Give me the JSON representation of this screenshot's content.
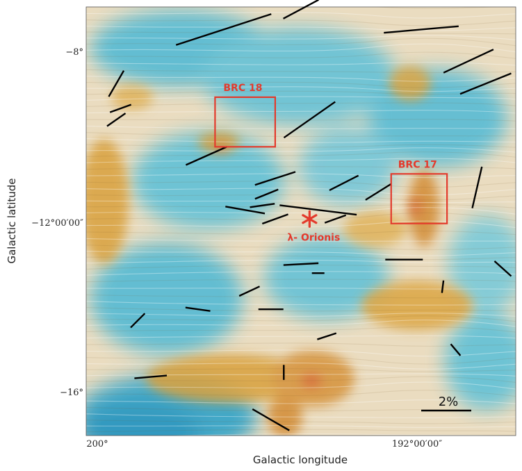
{
  "chart_data": {
    "type": "scatter",
    "xlabel": "Galactic longitude",
    "ylabel": "Galactic latitude",
    "x_range": [
      200.3,
      190.3
    ],
    "y_range": [
      -16.8,
      -7.3
    ],
    "x_ticks": [
      {
        "value": 200,
        "label": "200°"
      },
      {
        "value": 192,
        "label": "192°00′00″"
      }
    ],
    "y_ticks": [
      {
        "value": -8,
        "label": "−8°"
      },
      {
        "value": -12,
        "label": "−12°00′00″"
      },
      {
        "value": -16,
        "label": "−16°"
      }
    ],
    "background": "polarization texture map (drapery) over dust intensity",
    "colors": {
      "diffuse": "#5bbcd3",
      "dense": "#d9a13d",
      "peak": "#d8643a",
      "vectors": "#000000",
      "annotation": "#e33a2c"
    },
    "regions": [
      {
        "name": "BRC 18",
        "l_min": 195.9,
        "l_max": 197.3,
        "b_min": -10.4,
        "b_max": -9.3
      },
      {
        "name": "BRC 17",
        "l_min": 191.9,
        "l_max": 193.2,
        "b_min": -12.1,
        "b_max": -11.0
      }
    ],
    "markers": [
      {
        "name": "λ- Orionis",
        "l": 195.1,
        "b": -12.0,
        "symbol": "*"
      }
    ],
    "scale_bar": {
      "label": "2%",
      "fraction": 0.02
    },
    "vectors": [
      {
        "l": 197.1,
        "b": -7.8,
        "angle": 18,
        "p": 0.04
      },
      {
        "l": 195.3,
        "b": -7.35,
        "angle": 28,
        "p": 0.016
      },
      {
        "l": 192.5,
        "b": -7.8,
        "angle": 5,
        "p": 0.03
      },
      {
        "l": 191.4,
        "b": -8.5,
        "angle": 25,
        "p": 0.022
      },
      {
        "l": 191.0,
        "b": -9.0,
        "angle": 22,
        "p": 0.022
      },
      {
        "l": 199.6,
        "b": -9.0,
        "angle": 60,
        "p": 0.012
      },
      {
        "l": 199.5,
        "b": -9.55,
        "angle": 20,
        "p": 0.009
      },
      {
        "l": 199.6,
        "b": -9.8,
        "angle": 35,
        "p": 0.009
      },
      {
        "l": 195.1,
        "b": -9.8,
        "angle": 35,
        "p": 0.025
      },
      {
        "l": 197.5,
        "b": -10.6,
        "angle": 24,
        "p": 0.018
      },
      {
        "l": 195.9,
        "b": -11.1,
        "angle": 18,
        "p": 0.017
      },
      {
        "l": 196.1,
        "b": -11.45,
        "angle": 22,
        "p": 0.01
      },
      {
        "l": 196.2,
        "b": -11.7,
        "angle": 8,
        "p": 0.01
      },
      {
        "l": 195.9,
        "b": -12.0,
        "angle": 20,
        "p": 0.011
      },
      {
        "l": 196.6,
        "b": -11.8,
        "angle": -10,
        "p": 0.016
      },
      {
        "l": 194.9,
        "b": -11.8,
        "angle": -7,
        "p": 0.031
      },
      {
        "l": 194.3,
        "b": -11.2,
        "angle": 27,
        "p": 0.013
      },
      {
        "l": 193.5,
        "b": -11.4,
        "angle": 32,
        "p": 0.012
      },
      {
        "l": 194.5,
        "b": -12.0,
        "angle": 20,
        "p": 0.009
      },
      {
        "l": 191.2,
        "b": -11.3,
        "angle": 77,
        "p": 0.017
      },
      {
        "l": 192.9,
        "b": -12.9,
        "angle": 0,
        "p": 0.015
      },
      {
        "l": 195.3,
        "b": -13.0,
        "angle": 3,
        "p": 0.014
      },
      {
        "l": 194.9,
        "b": -13.2,
        "angle": 0,
        "p": 0.005
      },
      {
        "l": 196.5,
        "b": -13.6,
        "angle": 25,
        "p": 0.009
      },
      {
        "l": 197.7,
        "b": -14.0,
        "angle": -8,
        "p": 0.01
      },
      {
        "l": 196.0,
        "b": -14.0,
        "angle": 0,
        "p": 0.01
      },
      {
        "l": 199.1,
        "b": -14.25,
        "angle": 45,
        "p": 0.008
      },
      {
        "l": 194.7,
        "b": -14.6,
        "angle": 18,
        "p": 0.008
      },
      {
        "l": 192.0,
        "b": -13.5,
        "angle": 83,
        "p": 0.005
      },
      {
        "l": 190.6,
        "b": -13.1,
        "angle": -42,
        "p": 0.009
      },
      {
        "l": 191.7,
        "b": -14.9,
        "angle": -50,
        "p": 0.006
      },
      {
        "l": 198.8,
        "b": -15.5,
        "angle": 5,
        "p": 0.013
      },
      {
        "l": 195.7,
        "b": -15.4,
        "angle": 90,
        "p": 0.006
      },
      {
        "l": 196.0,
        "b": -16.45,
        "angle": -30,
        "p": 0.017
      }
    ]
  }
}
